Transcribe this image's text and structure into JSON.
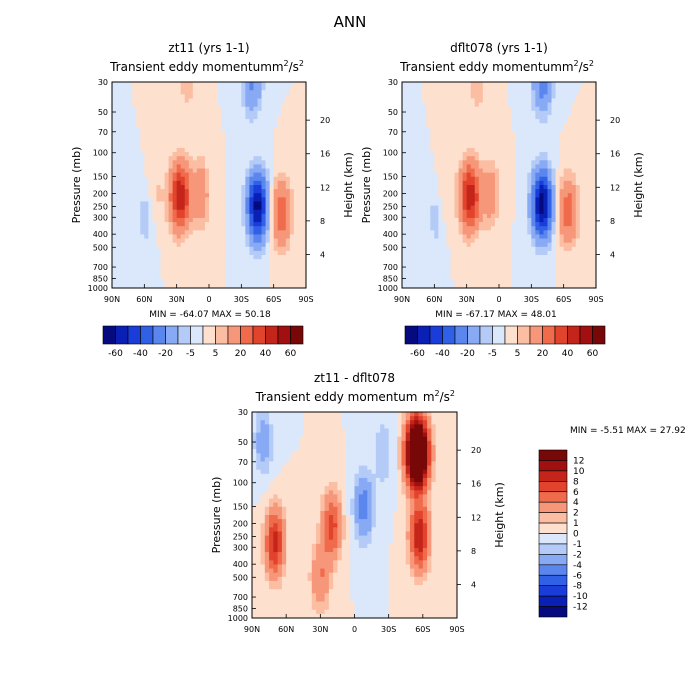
{
  "figure_title": "ANN",
  "chart_data": [
    {
      "type": "heatmap",
      "id": "p1",
      "title": "zt11 (yrs 1-1)",
      "subtitle": "Transient eddy momentum",
      "units_base": "m",
      "units_exp": "2",
      "units_tail": "/s",
      "units_exp2": "2",
      "ylabel": "Pressure (mb)",
      "y2label": "Height (km)",
      "x_ticks": [
        "90N",
        "60N",
        "30N",
        "0",
        "30S",
        "60S",
        "90S"
      ],
      "y_ticks": [
        "30",
        "50",
        "70",
        "100",
        "150",
        "200",
        "250",
        "300",
        "400",
        "500",
        "700",
        "850",
        "1000"
      ],
      "height_ticks": [
        "20",
        "16",
        "12",
        "8",
        "4"
      ],
      "min_label": "MIN = -64.07",
      "max_label": "MAX = 50.18",
      "min": -64.07,
      "max": 50.18,
      "features": [
        {
          "lat": 27,
          "p": 210,
          "value": 50
        },
        {
          "lat": 8,
          "p": 200,
          "value": 18
        },
        {
          "lat": 50,
          "p": 210,
          "value": 7
        },
        {
          "lat": 20,
          "p": 30,
          "value": 8
        },
        {
          "lat": -45,
          "p": 250,
          "value": -64
        },
        {
          "lat": -40,
          "p": 30,
          "value": -22
        },
        {
          "lat": -67,
          "p": 280,
          "value": 28
        },
        {
          "lat": 58,
          "p": 300,
          "value": -9
        }
      ],
      "colorbar": {
        "labels": [
          "-60",
          "-40",
          "-20",
          "-5",
          "5",
          "20",
          "40",
          "60"
        ]
      }
    },
    {
      "type": "heatmap",
      "id": "p2",
      "title": "dflt078 (yrs 1-1)",
      "subtitle": "Transient eddy momentum",
      "units_base": "m",
      "units_exp": "2",
      "units_tail": "/s",
      "units_exp2": "2",
      "ylabel": "Pressure (mb)",
      "y2label": "Height (km)",
      "x_ticks": [
        "90N",
        "60N",
        "30N",
        "0",
        "30S",
        "60S",
        "90S"
      ],
      "y_ticks": [
        "30",
        "50",
        "70",
        "100",
        "150",
        "200",
        "250",
        "300",
        "400",
        "500",
        "700",
        "850",
        "1000"
      ],
      "height_ticks": [
        "20",
        "16",
        "12",
        "8",
        "4"
      ],
      "min_label": "MIN = -67.17",
      "max_label": "MAX = 48.01",
      "min": -67.17,
      "max": 48.01,
      "features": [
        {
          "lat": 27,
          "p": 210,
          "value": 48
        },
        {
          "lat": 8,
          "p": 200,
          "value": 16
        },
        {
          "lat": 50,
          "p": 210,
          "value": 6
        },
        {
          "lat": 20,
          "p": 30,
          "value": 9
        },
        {
          "lat": -40,
          "p": 240,
          "value": -67
        },
        {
          "lat": -40,
          "p": 30,
          "value": -25
        },
        {
          "lat": -64,
          "p": 270,
          "value": 27
        },
        {
          "lat": 58,
          "p": 300,
          "value": -8
        }
      ],
      "colorbar": {
        "labels": [
          "-60",
          "-40",
          "-20",
          "-5",
          "5",
          "20",
          "40",
          "60"
        ]
      }
    },
    {
      "type": "heatmap",
      "id": "p3",
      "title": "zt11 - dflt078",
      "subtitle": "Transient eddy momentum",
      "units_base": "m",
      "units_exp": "2",
      "units_tail": "/s",
      "units_exp2": "2",
      "ylabel": "Pressure (mb)",
      "y2label": "Height (km)",
      "x_ticks": [
        "90N",
        "60N",
        "30N",
        "0",
        "30S",
        "60S",
        "90S"
      ],
      "y_ticks": [
        "30",
        "50",
        "70",
        "100",
        "150",
        "200",
        "250",
        "300",
        "400",
        "500",
        "700",
        "850",
        "1000"
      ],
      "height_ticks": [
        "20",
        "16",
        "12",
        "8",
        "4"
      ],
      "min_label": "MIN =   -5.51",
      "max_label": "MAX =   27.92",
      "min": -5.51,
      "max": 27.92,
      "features": [
        {
          "lat": -55,
          "p": 60,
          "value": 27
        },
        {
          "lat": -57,
          "p": 250,
          "value": 10
        },
        {
          "lat": 70,
          "p": 280,
          "value": 9
        },
        {
          "lat": 20,
          "p": 210,
          "value": 7
        },
        {
          "lat": 30,
          "p": 500,
          "value": 4
        },
        {
          "lat": -8,
          "p": 150,
          "value": -5
        },
        {
          "lat": 80,
          "p": 50,
          "value": -3
        },
        {
          "lat": -25,
          "p": 60,
          "value": -2
        }
      ],
      "colorbar": {
        "labels": [
          "12",
          "10",
          "8",
          "6",
          "4",
          "2",
          "1",
          "0",
          "-1",
          "-2",
          "-4",
          "-6",
          "-8",
          "-10",
          "-12"
        ]
      }
    }
  ],
  "palettes": {
    "full": [
      "#050a7e",
      "#0a20b4",
      "#1a3cd8",
      "#3060e6",
      "#5a86ee",
      "#88aaf4",
      "#b4cbf8",
      "#dbe8fb",
      "#fde0ce",
      "#fbbea3",
      "#f7977a",
      "#f06a4c",
      "#e2432d",
      "#c4251a",
      "#a01010",
      "#780808"
    ],
    "diff": [
      "#780808",
      "#a01010",
      "#c4251a",
      "#e2432d",
      "#f06a4c",
      "#f7977a",
      "#fbbea3",
      "#fde0ce",
      "#dbe8fb",
      "#b4cbf8",
      "#88aaf4",
      "#5a86ee",
      "#3060e6",
      "#1a3cd8",
      "#0a20b4",
      "#050a7e"
    ]
  }
}
